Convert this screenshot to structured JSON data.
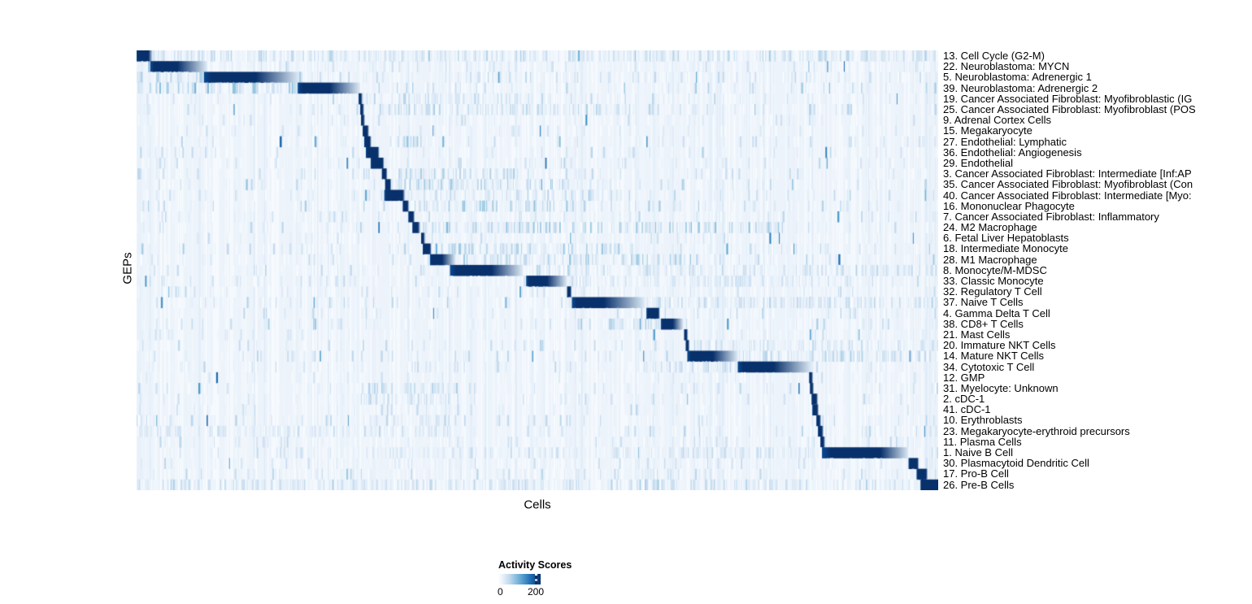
{
  "figure": {
    "y_axis_label": "GEPs",
    "x_axis_label": "Cells",
    "background_color": "#ffffff"
  },
  "legend": {
    "title": "Activity Scores",
    "min_label": "0",
    "tick_label": "200"
  },
  "chart_data": {
    "type": "heatmap",
    "title": "",
    "xlabel": "Cells",
    "ylabel": "GEPs",
    "x_tick_labels": [],
    "legend_title": "Activity Scores",
    "legend_ticks": [
      0,
      200
    ],
    "colorscale": {
      "min": 0,
      "max": 225,
      "base_color": "#edf3fa",
      "ramp": [
        "#f7fbff",
        "#deebf7",
        "#c6dbef",
        "#9ecae1",
        "#6baed6",
        "#4292c6",
        "#2171b5",
        "#08519c",
        "#08306b"
      ]
    },
    "row_note": "Each row = one GEP; 'block' = [startFrac, darkEndFrac, fadeEndFrac] of the x-range where activity is at/above ~200 then fades; 'noise'=[density,strength]; 'bands'=[start,end,strength] of elevated low activity.",
    "rows": [
      {
        "label": "13. Cell Cycle (G2-M)",
        "block": [
          0.0,
          0.015,
          0.02
        ],
        "noise": [
          0.85,
          0.5
        ],
        "bands": [
          [
            0.0,
            1.0,
            0.3
          ]
        ]
      },
      {
        "label": "22. Neuroblastoma: MYCN",
        "block": [
          0.017,
          0.051,
          0.088
        ],
        "noise": [
          0.8,
          0.3
        ],
        "bands": []
      },
      {
        "label": "5. Neuroblastoma: Adrenergic 1",
        "block": [
          0.084,
          0.149,
          0.203
        ],
        "noise": [
          0.8,
          0.3
        ],
        "bands": [
          [
            0.0,
            0.084,
            0.45
          ]
        ]
      },
      {
        "label": "39. Neuroblastoma: Adrenergic 2",
        "block": [
          0.201,
          0.241,
          0.279
        ],
        "noise": [
          0.6,
          0.4
        ],
        "bands": [
          [
            0.0,
            0.2,
            0.5
          ]
        ]
      },
      {
        "label": "19. Cancer Associated Fibroblast: Myofibroblastic (IG",
        "block": [
          0.277,
          0.28,
          0.282
        ],
        "noise": [
          0.5,
          0.3
        ],
        "bands": [
          [
            0.28,
            0.52,
            0.3
          ]
        ]
      },
      {
        "label": "25. Cancer Associated Fibroblast: Myofibroblast (POS",
        "block": [
          0.279,
          0.282,
          0.284
        ],
        "noise": [
          0.5,
          0.3
        ],
        "bands": [
          [
            0.3,
            0.62,
            0.35
          ]
        ]
      },
      {
        "label": "9. Adrenal Cortex Cells",
        "block": [
          0.28,
          0.283,
          0.285
        ],
        "noise": [
          0.4,
          0.25
        ],
        "bands": []
      },
      {
        "label": "15. Megakaryocyte",
        "block": [
          0.282,
          0.288,
          0.29
        ],
        "noise": [
          0.4,
          0.25
        ],
        "bands": []
      },
      {
        "label": "27. Endothelial: Lymphatic",
        "block": [
          0.284,
          0.291,
          0.293
        ],
        "noise": [
          0.45,
          0.3
        ],
        "bands": [
          [
            0.33,
            0.37,
            0.45
          ]
        ]
      },
      {
        "label": "36. Endothelial: Angiogenesis",
        "block": [
          0.286,
          0.301,
          0.303
        ],
        "noise": [
          0.45,
          0.3
        ],
        "bands": []
      },
      {
        "label": "29. Endothelial",
        "block": [
          0.292,
          0.307,
          0.309
        ],
        "noise": [
          0.45,
          0.3
        ],
        "bands": []
      },
      {
        "label": "3. Cancer Associated Fibroblast: Intermediate [Inf:AP",
        "block": [
          0.306,
          0.311,
          0.313
        ],
        "noise": [
          0.5,
          0.3
        ],
        "bands": [
          [
            0.31,
            0.5,
            0.35
          ]
        ]
      },
      {
        "label": "35. Cancer Associated Fibroblast: Myofibroblast (Con",
        "block": [
          0.31,
          0.316,
          0.318
        ],
        "noise": [
          0.5,
          0.35
        ],
        "bands": [
          [
            0.31,
            0.55,
            0.4
          ]
        ]
      },
      {
        "label": "40. Cancer Associated Fibroblast: Intermediate [Myo:",
        "block": [
          0.309,
          0.332,
          0.335
        ],
        "noise": [
          0.5,
          0.3
        ],
        "bands": [
          [
            0.34,
            0.6,
            0.3
          ]
        ]
      },
      {
        "label": "16. Mononuclear Phagocyte",
        "block": [
          0.332,
          0.338,
          0.34
        ],
        "noise": [
          0.5,
          0.35
        ],
        "bands": [
          [
            0.34,
            0.56,
            0.45
          ]
        ]
      },
      {
        "label": "7. Cancer Associated Fibroblast: Inflammatory",
        "block": [
          0.339,
          0.345,
          0.347
        ],
        "noise": [
          0.45,
          0.3
        ],
        "bands": []
      },
      {
        "label": "24. M2 Macrophage",
        "block": [
          0.344,
          0.351,
          0.354
        ],
        "noise": [
          0.5,
          0.35
        ],
        "bands": [
          [
            0.35,
            0.8,
            0.45
          ]
        ]
      },
      {
        "label": "6. Fetal Liver Hepatoblasts",
        "block": [
          0.355,
          0.358,
          0.36
        ],
        "noise": [
          0.4,
          0.25
        ],
        "bands": []
      },
      {
        "label": "18. Intermediate Monocyte",
        "block": [
          0.357,
          0.366,
          0.368
        ],
        "noise": [
          0.5,
          0.35
        ],
        "bands": [
          [
            0.37,
            0.62,
            0.4
          ]
        ]
      },
      {
        "label": "28. M1 Macrophage",
        "block": [
          0.366,
          0.381,
          0.398
        ],
        "noise": [
          0.5,
          0.35
        ],
        "bands": [
          [
            0.4,
            0.7,
            0.4
          ]
        ]
      },
      {
        "label": "8. Monocyte/M-MDSC",
        "block": [
          0.391,
          0.443,
          0.482
        ],
        "noise": [
          0.5,
          0.35
        ],
        "bands": [
          [
            0.49,
            1.0,
            0.3
          ]
        ]
      },
      {
        "label": "33. Classic Monocyte",
        "block": [
          0.486,
          0.512,
          0.537
        ],
        "noise": [
          0.5,
          0.3
        ],
        "bands": [
          [
            0.54,
            0.9,
            0.25
          ]
        ]
      },
      {
        "label": "32. Regulatory T Cell",
        "block": [
          0.537,
          0.541,
          0.543
        ],
        "noise": [
          0.45,
          0.3
        ],
        "bands": [
          [
            0.03,
            0.06,
            0.55
          ]
        ]
      },
      {
        "label": "37. Naive T Cells",
        "block": [
          0.543,
          0.583,
          0.634
        ],
        "noise": [
          0.5,
          0.35
        ],
        "bands": [
          [
            0.64,
            1.0,
            0.3
          ]
        ]
      },
      {
        "label": "4. Gamma Delta T Cell",
        "block": [
          0.636,
          0.651,
          0.653
        ],
        "noise": [
          0.45,
          0.3
        ],
        "bands": []
      },
      {
        "label": "38. CD8+ T Cells",
        "block": [
          0.654,
          0.669,
          0.682
        ],
        "noise": [
          0.5,
          0.35
        ],
        "bands": [
          [
            0.55,
            0.65,
            0.4
          ]
        ]
      },
      {
        "label": "21. Mast Cells",
        "block": [
          0.683,
          0.686,
          0.688
        ],
        "noise": [
          0.4,
          0.25
        ],
        "bands": []
      },
      {
        "label": "20. Immature NKT Cells",
        "block": [
          0.685,
          0.688,
          0.69
        ],
        "noise": [
          0.45,
          0.3
        ],
        "bands": [
          [
            0.69,
            1.0,
            0.28
          ]
        ]
      },
      {
        "label": "14. Mature NKT Cells",
        "block": [
          0.687,
          0.719,
          0.75
        ],
        "noise": [
          0.5,
          0.35
        ],
        "bands": [
          [
            0.75,
            1.0,
            0.35
          ]
        ]
      },
      {
        "label": "34. Cytotoxic T Cell",
        "block": [
          0.75,
          0.795,
          0.842
        ],
        "noise": [
          0.5,
          0.3
        ],
        "bands": [
          [
            0.63,
            0.75,
            0.3
          ]
        ]
      },
      {
        "label": "12. GMP",
        "block": [
          0.839,
          0.842,
          0.844
        ],
        "noise": [
          0.4,
          0.25
        ],
        "bands": []
      },
      {
        "label": "31. Myelocyte: Unknown",
        "block": [
          0.84,
          0.843,
          0.845
        ],
        "noise": [
          0.5,
          0.3
        ],
        "bands": [
          [
            0.28,
            0.4,
            0.35
          ]
        ]
      },
      {
        "label": "2. cDC-1",
        "block": [
          0.842,
          0.848,
          0.85
        ],
        "noise": [
          0.45,
          0.3
        ],
        "bands": [
          [
            0.28,
            0.4,
            0.3
          ]
        ]
      },
      {
        "label": "41. cDC-1",
        "block": [
          0.843,
          0.849,
          0.851
        ],
        "noise": [
          0.4,
          0.3
        ],
        "bands": []
      },
      {
        "label": "10. Erythroblasts",
        "block": [
          0.848,
          0.852,
          0.854
        ],
        "noise": [
          0.45,
          0.3
        ],
        "bands": [
          [
            0.28,
            0.4,
            0.3
          ]
        ]
      },
      {
        "label": "23. Megakaryocyte-erythroid precursors",
        "block": [
          0.85,
          0.855,
          0.857
        ],
        "noise": [
          0.5,
          0.3
        ],
        "bands": [
          [
            0.0,
            0.4,
            0.25
          ]
        ]
      },
      {
        "label": "11. Plasma Cells",
        "block": [
          0.853,
          0.857,
          0.859
        ],
        "noise": [
          0.45,
          0.3
        ],
        "bands": []
      },
      {
        "label": "1. Naive B Cell",
        "block": [
          0.855,
          0.928,
          0.963
        ],
        "noise": [
          0.5,
          0.3
        ],
        "bands": [
          [
            0.28,
            0.85,
            0.25
          ]
        ]
      },
      {
        "label": "30. Plasmacytoid Dendritic Cell",
        "block": [
          0.963,
          0.974,
          0.976
        ],
        "noise": [
          0.5,
          0.3
        ],
        "bands": []
      },
      {
        "label": "17. Pro-B Cell",
        "block": [
          0.973,
          0.985,
          0.987
        ],
        "noise": [
          0.6,
          0.3
        ],
        "bands": []
      },
      {
        "label": "26. Pre-B Cells",
        "block": [
          0.978,
          1.0,
          1.0
        ],
        "noise": [
          0.9,
          0.35
        ],
        "bands": [
          [
            0.0,
            1.0,
            0.3
          ]
        ]
      }
    ]
  }
}
